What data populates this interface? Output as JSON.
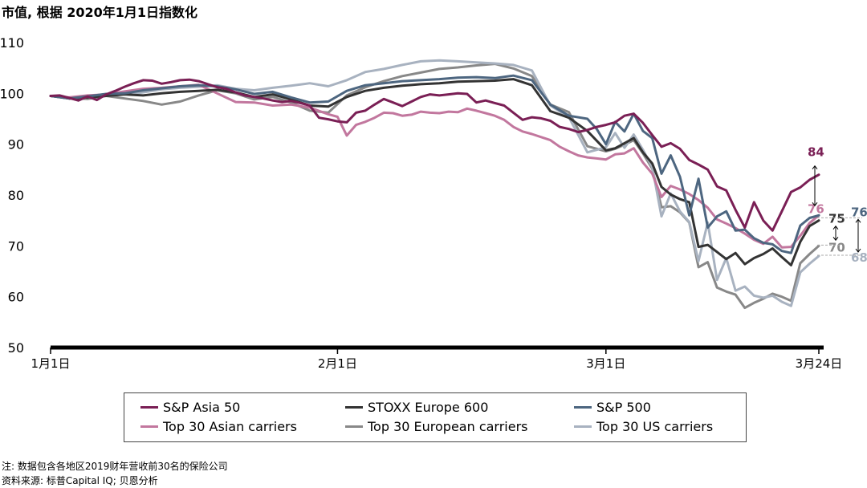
{
  "title": "市值, 根据 2020年1月1日指数化",
  "notes": {
    "note": "注: 数据包含各地区2019财年营收前30名的保险公司",
    "source": "资料来源: 标普Capital IQ; 贝恩分析"
  },
  "chart_data": {
    "type": "line",
    "title": "市值, 根据 2020年1月1日指数化",
    "ylim": [
      50,
      110
    ],
    "yticks": [
      "50",
      "60",
      "70",
      "80",
      "90",
      "100",
      "110"
    ],
    "x_range_days": [
      1,
      84
    ],
    "xticks": [
      {
        "label": "1月1日",
        "day": 1
      },
      {
        "label": "2月1日",
        "day": 32
      },
      {
        "label": "3月1日",
        "day": 61
      },
      {
        "label": "3月24日",
        "day": 84
      }
    ],
    "grid": false,
    "legend_placement": "bottom",
    "series": [
      {
        "name": "S&P Asia 50",
        "color": "#7a1f55",
        "end_label": "84",
        "x": [
          1,
          2,
          3,
          4,
          5,
          6,
          7,
          8,
          9,
          10,
          11,
          12,
          13,
          14,
          15,
          16,
          17,
          18,
          19,
          20,
          21,
          22,
          23,
          24,
          25,
          26,
          27,
          28,
          29,
          30,
          31,
          32,
          33,
          34,
          35,
          36,
          37,
          38,
          39,
          40,
          41,
          42,
          43,
          44,
          45,
          46,
          47,
          48,
          49,
          50,
          51,
          52,
          53,
          54,
          55,
          56,
          57,
          58,
          59,
          60,
          61,
          62,
          63,
          64,
          65,
          66,
          67,
          68,
          69,
          70,
          71,
          72,
          73,
          74,
          75,
          76,
          77,
          78,
          79,
          80,
          81,
          82,
          83,
          84
        ],
        "y": [
          99.5,
          99.6,
          99.1,
          98.6,
          99.4,
          98.7,
          99.8,
          100.5,
          101.3,
          102.0,
          102.6,
          102.5,
          101.9,
          102.2,
          102.6,
          102.7,
          102.4,
          101.8,
          101.2,
          100.9,
          100.2,
          99.6,
          99.3,
          99.0,
          98.6,
          98.3,
          98.5,
          98.1,
          97.6,
          95.2,
          94.9,
          94.5,
          94.3,
          96.2,
          96.6,
          97.8,
          98.9,
          98.2,
          97.5,
          98.4,
          99.3,
          99.8,
          99.6,
          99.8,
          100.0,
          99.9,
          98.2,
          98.6,
          98.1,
          97.6,
          96.2,
          94.8,
          95.3,
          95.1,
          94.6,
          93.4,
          93.0,
          92.4,
          92.8,
          93.4,
          93.8,
          94.3,
          95.6,
          96.0,
          94.2,
          91.8,
          89.5,
          90.2,
          89.1,
          86.9,
          86.0,
          85.0,
          81.7,
          80.9,
          77.1,
          73.6,
          78.6,
          75.0,
          73.0,
          76.8,
          80.6,
          81.5,
          83.0,
          84.0
        ]
      },
      {
        "name": "STOXX Europe 600",
        "color": "#333333",
        "end_label": "75",
        "x": [
          1,
          3,
          5,
          7,
          9,
          11,
          13,
          15,
          17,
          19,
          21,
          23,
          25,
          27,
          29,
          31,
          33,
          35,
          37,
          39,
          41,
          43,
          45,
          47,
          49,
          51,
          53,
          55,
          57,
          59,
          61,
          62,
          63,
          64,
          65,
          66,
          67,
          68,
          69,
          70,
          71,
          72,
          73,
          74,
          75,
          76,
          77,
          78,
          79,
          80,
          81,
          82,
          83,
          84
        ],
        "y": [
          99.5,
          99.0,
          99.2,
          99.5,
          99.8,
          99.6,
          100.0,
          100.3,
          100.5,
          100.7,
          100.2,
          99.3,
          99.8,
          98.8,
          97.6,
          97.4,
          99.3,
          100.5,
          101.1,
          101.5,
          101.8,
          102.0,
          102.3,
          102.4,
          102.5,
          102.8,
          101.6,
          96.5,
          95.2,
          92.6,
          88.8,
          89.2,
          90.2,
          91.2,
          88.4,
          86.2,
          81.6,
          80.1,
          79.2,
          78.6,
          69.8,
          70.2,
          68.8,
          67.4,
          68.6,
          66.4,
          67.6,
          68.4,
          69.5,
          67.8,
          66.2,
          70.8,
          73.9,
          75.0
        ]
      },
      {
        "name": "S&P 500",
        "color": "#4d6680",
        "end_label": "76",
        "x": [
          1,
          3,
          5,
          7,
          9,
          11,
          13,
          15,
          17,
          19,
          21,
          23,
          25,
          27,
          29,
          31,
          33,
          35,
          37,
          39,
          41,
          43,
          45,
          47,
          49,
          51,
          53,
          55,
          57,
          59,
          60,
          61,
          62,
          63,
          64,
          65,
          66,
          67,
          68,
          69,
          70,
          71,
          72,
          73,
          74,
          75,
          76,
          77,
          78,
          79,
          80,
          81,
          82,
          83,
          84
        ],
        "y": [
          99.5,
          99.0,
          99.4,
          99.9,
          100.0,
          100.6,
          101.0,
          101.4,
          101.6,
          101.4,
          100.8,
          99.9,
          100.3,
          99.2,
          98.2,
          98.4,
          100.5,
          101.6,
          102.0,
          102.4,
          102.6,
          102.8,
          103.1,
          103.2,
          103.0,
          103.5,
          102.6,
          97.8,
          95.6,
          95.0,
          93.0,
          90.0,
          94.4,
          92.5,
          96.0,
          92.6,
          91.2,
          84.2,
          87.8,
          83.6,
          76.0,
          83.2,
          73.6,
          75.8,
          76.8,
          73.0,
          73.2,
          71.5,
          70.6,
          70.3,
          69.0,
          68.6,
          74.0,
          75.5,
          76.0
        ]
      },
      {
        "name": "Top 30 Asian carriers",
        "color": "#c2779e",
        "end_label": "76",
        "x": [
          1,
          3,
          5,
          7,
          9,
          11,
          13,
          15,
          17,
          19,
          21,
          23,
          25,
          27,
          29,
          31,
          32,
          33,
          34,
          35,
          36,
          37,
          38,
          39,
          40,
          41,
          42,
          43,
          44,
          45,
          46,
          47,
          48,
          49,
          50,
          51,
          52,
          53,
          54,
          55,
          56,
          57,
          58,
          59,
          60,
          61,
          62,
          63,
          64,
          65,
          66,
          67,
          68,
          69,
          70,
          71,
          72,
          73,
          74,
          75,
          76,
          77,
          78,
          79,
          80,
          81,
          82,
          83,
          84
        ],
        "y": [
          99.5,
          99.2,
          99.6,
          99.8,
          100.4,
          100.9,
          101.1,
          101.4,
          101.7,
          100.0,
          98.3,
          98.2,
          97.6,
          97.8,
          97.2,
          95.9,
          95.4,
          91.7,
          93.8,
          94.4,
          95.2,
          96.2,
          96.1,
          95.6,
          95.8,
          96.4,
          96.2,
          96.1,
          96.4,
          96.3,
          97.0,
          96.6,
          96.1,
          95.6,
          94.8,
          93.4,
          92.5,
          92.0,
          91.4,
          90.8,
          89.5,
          88.6,
          87.8,
          87.4,
          87.2,
          87.0,
          88.0,
          88.2,
          89.2,
          86.4,
          84.2,
          79.6,
          81.8,
          81.1,
          80.2,
          79.0,
          77.5,
          75.2,
          74.4,
          73.5,
          72.4,
          71.2,
          70.4,
          71.8,
          69.7,
          69.8,
          72.0,
          74.5,
          76.0
        ]
      },
      {
        "name": "Top 30 European carriers",
        "color": "#888888",
        "end_label": "70",
        "x": [
          1,
          3,
          5,
          7,
          9,
          11,
          13,
          15,
          17,
          19,
          21,
          23,
          25,
          27,
          29,
          31,
          33,
          35,
          37,
          39,
          41,
          43,
          45,
          47,
          49,
          51,
          53,
          55,
          57,
          59,
          61,
          62,
          63,
          64,
          65,
          66,
          67,
          68,
          69,
          70,
          71,
          72,
          73,
          74,
          75,
          76,
          77,
          78,
          79,
          80,
          81,
          82,
          83,
          84
        ],
        "y": [
          99.5,
          99.1,
          98.9,
          99.5,
          99.0,
          98.5,
          97.8,
          98.4,
          99.6,
          100.6,
          100.0,
          98.8,
          99.3,
          98.2,
          96.6,
          96.2,
          99.6,
          101.2,
          102.4,
          103.4,
          104.1,
          104.8,
          105.1,
          105.5,
          105.8,
          104.9,
          103.4,
          97.8,
          96.3,
          89.6,
          88.6,
          89.1,
          89.9,
          90.8,
          88.2,
          85.2,
          77.6,
          77.8,
          76.6,
          74.6,
          65.8,
          66.8,
          61.8,
          61.0,
          60.4,
          57.8,
          58.8,
          59.6,
          60.6,
          60.0,
          59.2,
          66.6,
          68.4,
          70.0
        ]
      },
      {
        "name": "Top 30 US carriers",
        "color": "#a8b2c0",
        "end_label": "68",
        "x": [
          1,
          3,
          5,
          7,
          9,
          11,
          13,
          15,
          17,
          19,
          21,
          23,
          25,
          27,
          29,
          31,
          33,
          35,
          37,
          39,
          41,
          43,
          45,
          47,
          49,
          51,
          53,
          55,
          57,
          59,
          61,
          62,
          63,
          64,
          65,
          66,
          67,
          68,
          69,
          70,
          71,
          72,
          73,
          74,
          75,
          76,
          77,
          78,
          79,
          80,
          81,
          82,
          83,
          84
        ],
        "y": [
          99.5,
          99.0,
          99.3,
          99.7,
          99.8,
          100.2,
          100.8,
          101.1,
          101.3,
          101.6,
          100.9,
          100.6,
          101.1,
          101.5,
          102.0,
          101.4,
          102.6,
          104.2,
          104.8,
          105.6,
          106.3,
          106.5,
          106.3,
          106.1,
          105.9,
          105.6,
          104.5,
          97.6,
          95.3,
          88.4,
          89.4,
          92.2,
          89.3,
          91.9,
          88.9,
          85.5,
          75.8,
          80.3,
          76.8,
          74.7,
          67.0,
          74.6,
          63.3,
          67.6,
          61.2,
          62.0,
          60.2,
          59.8,
          60.2,
          59.0,
          58.2,
          64.8,
          66.5,
          68.0
        ]
      }
    ],
    "annotations": [
      {
        "text": "84",
        "color": "#7a1f55",
        "y": 84
      },
      {
        "text": "76",
        "color": "#c2779e",
        "y": 76
      },
      {
        "text": "75",
        "color": "#333333",
        "y": 75
      },
      {
        "text": "70",
        "color": "#888888",
        "y": 70
      },
      {
        "text": "76",
        "color": "#4d6680",
        "y": 76
      },
      {
        "text": "68",
        "color": "#a8b2c0",
        "y": 68
      }
    ]
  }
}
